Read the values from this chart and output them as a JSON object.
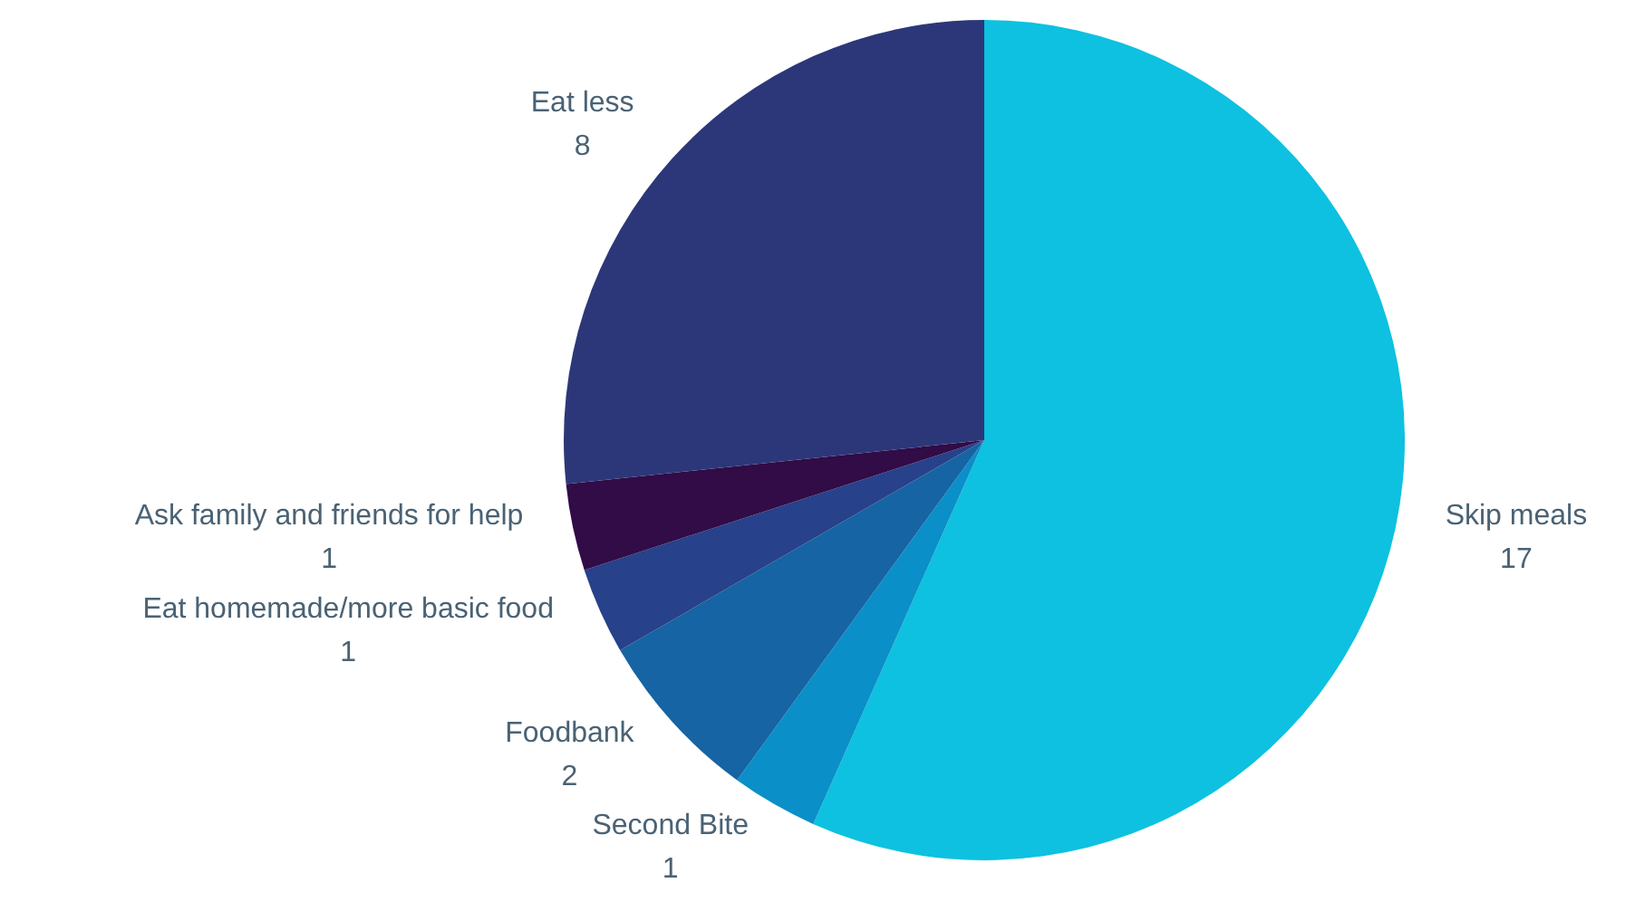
{
  "chart_data": {
    "type": "pie",
    "categories": [
      "Skip meals",
      "Second Bite",
      "Foodbank",
      "Eat homemade/more basic food",
      "Ask family and friends for help",
      "Eat less"
    ],
    "values": [
      17,
      1,
      2,
      1,
      1,
      8
    ],
    "colors": [
      "#0ec1e0",
      "#0a8fc8",
      "#1664a3",
      "#27418a",
      "#310c47",
      "#2c3779"
    ],
    "data_labels": true,
    "legend": false
  }
}
